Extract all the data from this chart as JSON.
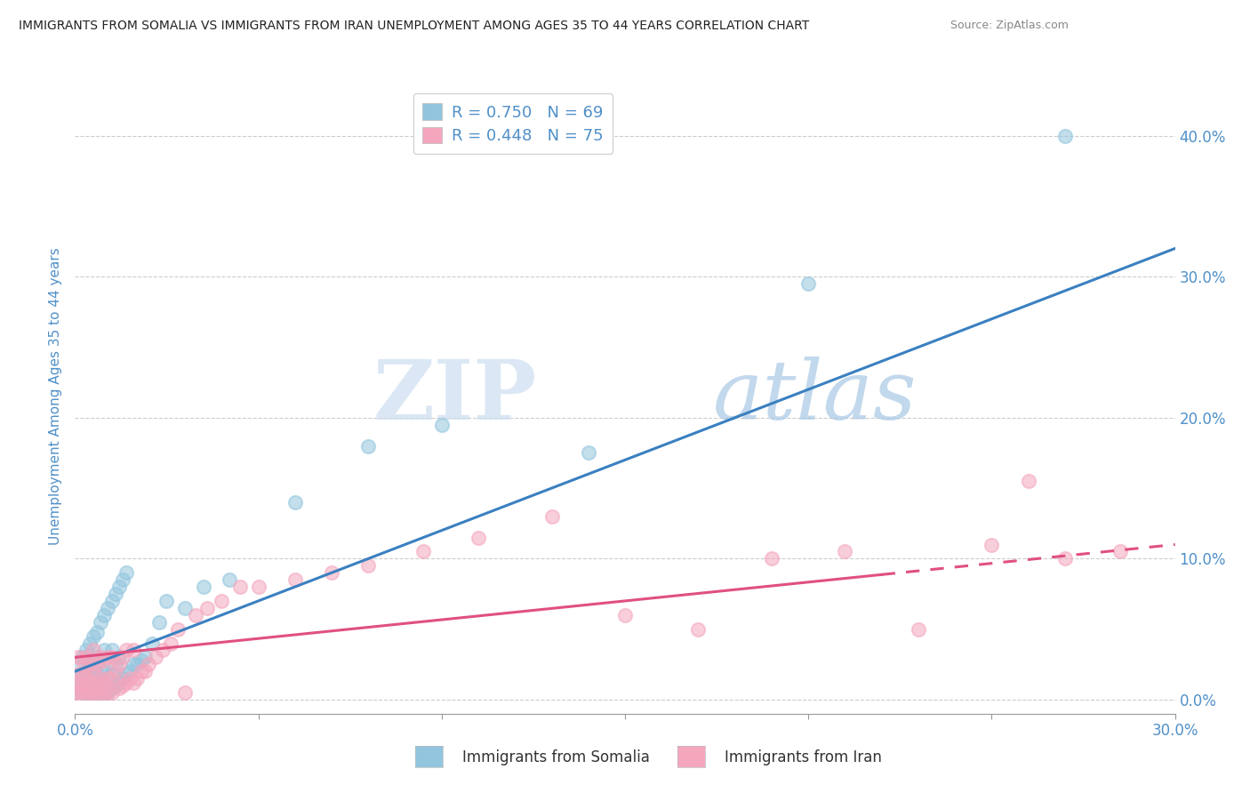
{
  "title": "IMMIGRANTS FROM SOMALIA VS IMMIGRANTS FROM IRAN UNEMPLOYMENT AMONG AGES 35 TO 44 YEARS CORRELATION CHART",
  "source": "Source: ZipAtlas.com",
  "ylabel": "Unemployment Among Ages 35 to 44 years",
  "xlabel_somalia": "Immigrants from Somalia",
  "xlabel_iran": "Immigrants from Iran",
  "xlim": [
    0.0,
    0.3
  ],
  "ylim": [
    -0.01,
    0.44
  ],
  "yticks": [
    0.0,
    0.1,
    0.2,
    0.3,
    0.4
  ],
  "xticks": [
    0.0,
    0.05,
    0.1,
    0.15,
    0.2,
    0.25,
    0.3
  ],
  "color_somalia": "#92c5de",
  "color_iran": "#f4a6bd",
  "trendline_color_somalia": "#3a80c0",
  "trendline_color_iran": "#e05080",
  "R_somalia": 0.75,
  "N_somalia": 69,
  "R_iran": 0.448,
  "N_iran": 75,
  "watermark_ZIP": "ZIP",
  "watermark_atlas": "atlas",
  "watermark_color_ZIP": "#c8ddf0",
  "watermark_color_atlas": "#a8c8e8",
  "background_color": "#ffffff",
  "grid_color": "#cccccc",
  "axis_label_color": "#5090c8",
  "title_color": "#222222",
  "legend_value_color": "#5090c8",
  "soma_scatter_x": [
    0.0,
    0.001,
    0.001,
    0.001,
    0.002,
    0.002,
    0.002,
    0.002,
    0.003,
    0.003,
    0.003,
    0.003,
    0.004,
    0.004,
    0.004,
    0.004,
    0.005,
    0.005,
    0.005,
    0.005,
    0.005,
    0.006,
    0.006,
    0.006,
    0.006,
    0.006,
    0.007,
    0.007,
    0.007,
    0.007,
    0.008,
    0.008,
    0.008,
    0.008,
    0.008,
    0.009,
    0.009,
    0.009,
    0.01,
    0.01,
    0.01,
    0.01,
    0.011,
    0.011,
    0.011,
    0.012,
    0.012,
    0.012,
    0.013,
    0.013,
    0.014,
    0.014,
    0.015,
    0.016,
    0.017,
    0.018,
    0.019,
    0.021,
    0.023,
    0.025,
    0.03,
    0.035,
    0.042,
    0.06,
    0.08,
    0.1,
    0.14,
    0.2,
    0.27
  ],
  "soma_scatter_y": [
    0.005,
    0.008,
    0.015,
    0.025,
    0.005,
    0.01,
    0.018,
    0.03,
    0.005,
    0.01,
    0.02,
    0.035,
    0.005,
    0.012,
    0.022,
    0.04,
    0.005,
    0.01,
    0.018,
    0.028,
    0.045,
    0.005,
    0.01,
    0.018,
    0.03,
    0.048,
    0.005,
    0.012,
    0.022,
    0.055,
    0.005,
    0.01,
    0.02,
    0.035,
    0.06,
    0.005,
    0.015,
    0.065,
    0.008,
    0.018,
    0.035,
    0.07,
    0.01,
    0.025,
    0.075,
    0.012,
    0.03,
    0.08,
    0.015,
    0.085,
    0.018,
    0.09,
    0.02,
    0.025,
    0.025,
    0.028,
    0.03,
    0.04,
    0.055,
    0.07,
    0.065,
    0.08,
    0.085,
    0.14,
    0.18,
    0.195,
    0.175,
    0.295,
    0.4
  ],
  "iran_scatter_x": [
    0.0,
    0.0,
    0.001,
    0.001,
    0.001,
    0.001,
    0.002,
    0.002,
    0.002,
    0.002,
    0.003,
    0.003,
    0.003,
    0.003,
    0.004,
    0.004,
    0.004,
    0.005,
    0.005,
    0.005,
    0.005,
    0.006,
    0.006,
    0.006,
    0.007,
    0.007,
    0.007,
    0.008,
    0.008,
    0.008,
    0.009,
    0.009,
    0.009,
    0.01,
    0.01,
    0.01,
    0.011,
    0.012,
    0.012,
    0.013,
    0.013,
    0.014,
    0.014,
    0.015,
    0.016,
    0.016,
    0.017,
    0.018,
    0.019,
    0.02,
    0.022,
    0.024,
    0.026,
    0.028,
    0.03,
    0.033,
    0.036,
    0.04,
    0.045,
    0.05,
    0.06,
    0.07,
    0.08,
    0.095,
    0.11,
    0.13,
    0.15,
    0.17,
    0.19,
    0.21,
    0.23,
    0.25,
    0.26,
    0.27,
    0.285
  ],
  "iran_scatter_y": [
    0.005,
    0.012,
    0.005,
    0.01,
    0.018,
    0.03,
    0.005,
    0.01,
    0.018,
    0.028,
    0.005,
    0.01,
    0.018,
    0.03,
    0.005,
    0.012,
    0.025,
    0.005,
    0.01,
    0.02,
    0.035,
    0.005,
    0.012,
    0.025,
    0.005,
    0.015,
    0.03,
    0.005,
    0.012,
    0.028,
    0.005,
    0.015,
    0.03,
    0.005,
    0.015,
    0.03,
    0.02,
    0.008,
    0.025,
    0.01,
    0.03,
    0.012,
    0.035,
    0.015,
    0.012,
    0.035,
    0.015,
    0.02,
    0.02,
    0.025,
    0.03,
    0.035,
    0.04,
    0.05,
    0.005,
    0.06,
    0.065,
    0.07,
    0.08,
    0.08,
    0.085,
    0.09,
    0.095,
    0.105,
    0.115,
    0.13,
    0.06,
    0.05,
    0.1,
    0.105,
    0.05,
    0.11,
    0.155,
    0.1,
    0.105
  ]
}
